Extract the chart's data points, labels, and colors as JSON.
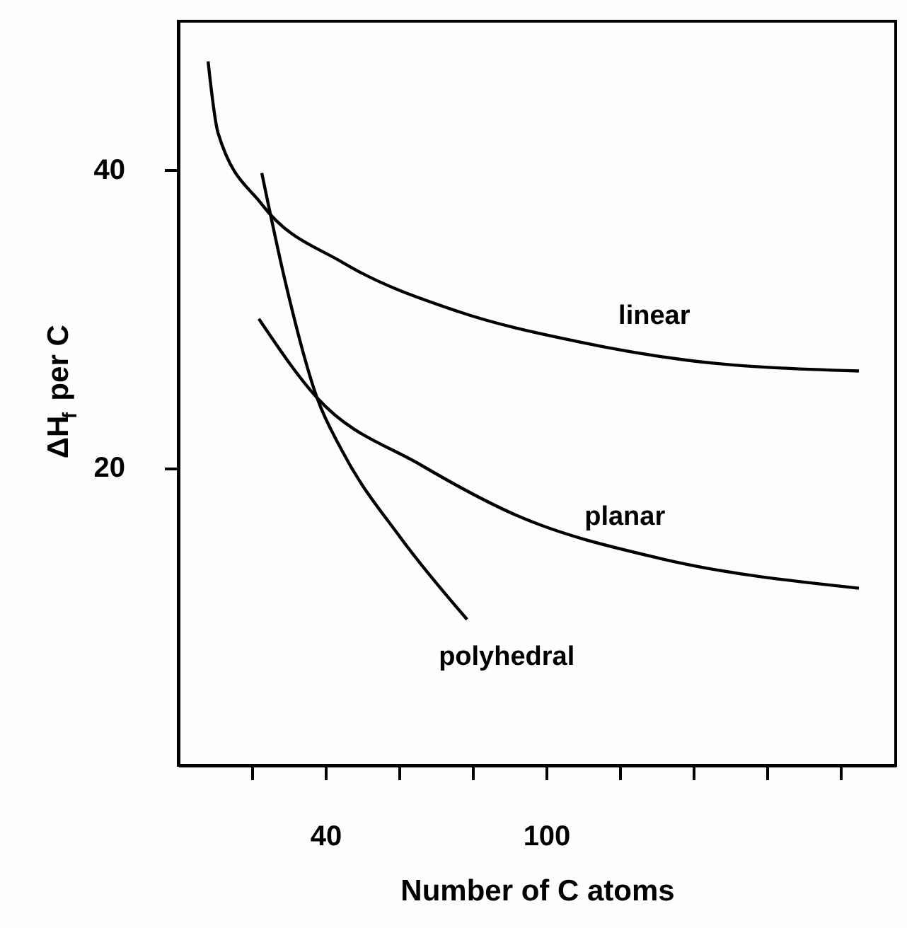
{
  "chart_data": {
    "type": "line",
    "xlabel": "Number of C atoms",
    "ylabel": "ΔH$_{f}$ per C",
    "xlim": [
      0,
      195
    ],
    "ylim": [
      0,
      50
    ],
    "xticks": [
      {
        "value": 20,
        "label": null
      },
      40,
      {
        "value": 60,
        "label": null
      },
      {
        "value": 80,
        "label": null
      },
      100,
      {
        "value": 120,
        "label": null
      },
      {
        "value": 140,
        "label": null
      },
      {
        "value": 160,
        "label": null
      },
      {
        "value": 180,
        "label": null
      }
    ],
    "yticks": [
      20,
      40
    ],
    "grid": false,
    "marker": "none",
    "line_style": "solid",
    "series": [
      {
        "name": "linear",
        "color": "#000000",
        "x": [
          8.1,
          10.8,
          22.7,
          44.6,
          76,
          108,
          139,
          185
        ],
        "values": [
          47.3,
          42.5,
          37.7,
          33.8,
          30.5,
          28.5,
          27.2,
          26.5
        ]
      },
      {
        "name": "planar",
        "color": "#000000",
        "x": [
          21.9,
          37.7,
          65.8,
          91.9,
          131,
          185
        ],
        "values": [
          30,
          24.7,
          20.2,
          16.8,
          13.9,
          11.9
        ]
      },
      {
        "name": "polyhedral",
        "color": "#000000",
        "x": [
          22.7,
          28.8,
          37.7,
          44.6,
          60.4,
          78.5
        ],
        "values": [
          39.8,
          32.8,
          24.7,
          21.1,
          15.3,
          9.8
        ]
      }
    ]
  }
}
